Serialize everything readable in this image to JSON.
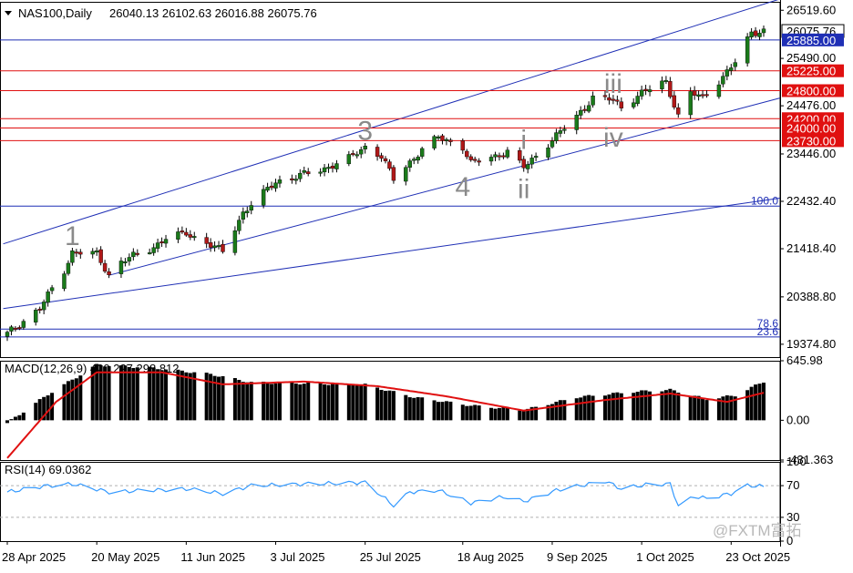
{
  "header": {
    "symbol": "NAS100,Daily",
    "ohlc": "26040.13 26102.63 26016.88 26075.76"
  },
  "colors": {
    "candle_up": "#1a7a1a",
    "candle_down": "#b01818",
    "channel": "#1f2fb5",
    "level_red": "#e01010",
    "level_blue": "#1f2fb5",
    "macd_signal": "#e01010",
    "rsi_line": "#3399ff",
    "wave_label": "#8a8a8a",
    "price_tag_text": "#ffffff"
  },
  "watermark": "@FXTM富拓",
  "chart_data": [
    {
      "type": "candlestick",
      "panel": "price",
      "y_ticks": [
        "26519.60",
        "25490.00",
        "24476.00",
        "23446.00",
        "22432.40",
        "21418.40",
        "20388.80",
        "19374.80"
      ],
      "ylim": [
        19100,
        26700
      ],
      "close_path": [
        {
          "date": "2025-04-28",
          "close": 19600
        },
        {
          "date": "2025-05-06",
          "close": 20150
        },
        {
          "date": "2025-05-12",
          "close": 20950
        },
        {
          "date": "2025-05-14",
          "close": 21350
        },
        {
          "date": "2025-05-20",
          "close": 21300
        },
        {
          "date": "2025-05-23",
          "close": 20850
        },
        {
          "date": "2025-05-26",
          "close": 21150
        },
        {
          "date": "2025-06-02",
          "close": 21400
        },
        {
          "date": "2025-06-06",
          "close": 21650
        },
        {
          "date": "2025-06-11",
          "close": 21750
        },
        {
          "date": "2025-06-17",
          "close": 21500
        },
        {
          "date": "2025-06-20",
          "close": 21350
        },
        {
          "date": "2025-06-25",
          "close": 22200
        },
        {
          "date": "2025-07-03",
          "close": 22850
        },
        {
          "date": "2025-07-14",
          "close": 23100
        },
        {
          "date": "2025-07-21",
          "close": 23350
        },
        {
          "date": "2025-07-25",
          "close": 23600
        },
        {
          "date": "2025-07-29",
          "close": 23400
        },
        {
          "date": "2025-08-01",
          "close": 22900
        },
        {
          "date": "2025-08-08",
          "close": 23550
        },
        {
          "date": "2025-08-12",
          "close": 23800
        },
        {
          "date": "2025-08-18",
          "close": 23600
        },
        {
          "date": "2025-08-20",
          "close": 23250
        },
        {
          "date": "2025-08-26",
          "close": 23400
        },
        {
          "date": "2025-08-29",
          "close": 23500
        },
        {
          "date": "2025-09-02",
          "close": 23150
        },
        {
          "date": "2025-09-09",
          "close": 23750
        },
        {
          "date": "2025-09-15",
          "close": 24250
        },
        {
          "date": "2025-09-19",
          "close": 24650
        },
        {
          "date": "2025-09-24",
          "close": 24600
        },
        {
          "date": "2025-09-26",
          "close": 24450
        },
        {
          "date": "2025-10-01",
          "close": 24750
        },
        {
          "date": "2025-10-07",
          "close": 25000
        },
        {
          "date": "2025-10-10",
          "close": 24250
        },
        {
          "date": "2025-10-13",
          "close": 24750
        },
        {
          "date": "2025-10-16",
          "close": 24650
        },
        {
          "date": "2025-10-21",
          "close": 25100
        },
        {
          "date": "2025-10-24",
          "close": 25400
        },
        {
          "date": "2025-10-28",
          "close": 26050
        },
        {
          "date": "2025-10-31",
          "close": 26075.76
        }
      ],
      "price_tags": [
        {
          "value": "26519.60",
          "label": "26519.60",
          "style": "axis"
        },
        {
          "value": "26075.76",
          "label": "26075.76",
          "style": "current"
        },
        {
          "value": "25885.00",
          "label": "25885.00",
          "style": "blue"
        },
        {
          "value": "25225.00",
          "label": "25225.00",
          "style": "red"
        },
        {
          "value": "24800.00",
          "label": "24800.00",
          "style": "red"
        },
        {
          "value": "24200.00",
          "label": "24200.00",
          "style": "red"
        },
        {
          "value": "24000.00",
          "label": "24000.00",
          "style": "red"
        },
        {
          "value": "23730.00",
          "label": "23730.00",
          "style": "red"
        }
      ],
      "horizontal_levels": [
        {
          "value": 25885,
          "color": "blue"
        },
        {
          "value": 25225,
          "color": "red"
        },
        {
          "value": 24800,
          "color": "red"
        },
        {
          "value": 24200,
          "color": "red"
        },
        {
          "value": 24000,
          "color": "red"
        },
        {
          "value": 23730,
          "color": "red"
        }
      ],
      "fibonacci": [
        {
          "label": "100.0",
          "value": 22330
        },
        {
          "label": "78.6",
          "value": 19700
        },
        {
          "label": "23.6",
          "value": 19530
        }
      ],
      "wave_labels": [
        {
          "label": "1",
          "date": "2025-05-14",
          "price": 21500
        },
        {
          "label": "3",
          "date": "2025-07-25",
          "price": 23750
        },
        {
          "label": "4",
          "date": "2025-08-18",
          "price": 22550
        },
        {
          "label": "i",
          "date": "2025-09-02",
          "price": 23550
        },
        {
          "label": "ii",
          "date": "2025-09-02",
          "price": 22500
        },
        {
          "label": "iii",
          "date": "2025-09-24",
          "price": 24750
        },
        {
          "label": "iv",
          "date": "2025-09-24",
          "price": 23600
        }
      ]
    },
    {
      "type": "bar",
      "panel": "macd",
      "title": "MACD(12,26,9) 420.227 298.812",
      "y_ticks": [
        "645.98",
        "0.00",
        "-431.363"
      ],
      "ylim": [
        -431.363,
        645.98
      ],
      "histogram_path": [
        {
          "date": "2025-04-28",
          "value": -30
        },
        {
          "date": "2025-05-08",
          "value": 280
        },
        {
          "date": "2025-05-20",
          "value": 600
        },
        {
          "date": "2025-06-02",
          "value": 570
        },
        {
          "date": "2025-06-17",
          "value": 500
        },
        {
          "date": "2025-06-27",
          "value": 410
        },
        {
          "date": "2025-07-10",
          "value": 400
        },
        {
          "date": "2025-07-25",
          "value": 385
        },
        {
          "date": "2025-08-06",
          "value": 250
        },
        {
          "date": "2025-08-20",
          "value": 160
        },
        {
          "date": "2025-09-02",
          "value": 110
        },
        {
          "date": "2025-09-15",
          "value": 250
        },
        {
          "date": "2025-09-29",
          "value": 310
        },
        {
          "date": "2025-10-08",
          "value": 330
        },
        {
          "date": "2025-10-17",
          "value": 230
        },
        {
          "date": "2025-10-24",
          "value": 270
        },
        {
          "date": "2025-10-31",
          "value": 420
        }
      ],
      "signal_path": [
        {
          "date": "2025-04-28",
          "value": -410
        },
        {
          "date": "2025-05-10",
          "value": 200
        },
        {
          "date": "2025-05-20",
          "value": 520
        },
        {
          "date": "2025-06-05",
          "value": 520
        },
        {
          "date": "2025-06-20",
          "value": 390
        },
        {
          "date": "2025-07-10",
          "value": 420
        },
        {
          "date": "2025-07-28",
          "value": 370
        },
        {
          "date": "2025-08-14",
          "value": 260
        },
        {
          "date": "2025-09-02",
          "value": 105
        },
        {
          "date": "2025-09-22",
          "value": 220
        },
        {
          "date": "2025-10-08",
          "value": 290
        },
        {
          "date": "2025-10-22",
          "value": 200
        },
        {
          "date": "2025-10-31",
          "value": 298.812
        }
      ]
    },
    {
      "type": "line",
      "panel": "rsi",
      "title": "RSI(14) 69.0362",
      "y_ticks": [
        "100",
        "70",
        "30",
        "0"
      ],
      "ylim": [
        0,
        100
      ],
      "levels": [
        70,
        30
      ],
      "series_path": [
        {
          "date": "2025-04-28",
          "value": 62
        },
        {
          "date": "2025-05-08",
          "value": 70
        },
        {
          "date": "2025-05-14",
          "value": 72
        },
        {
          "date": "2025-05-23",
          "value": 62
        },
        {
          "date": "2025-06-02",
          "value": 64
        },
        {
          "date": "2025-06-11",
          "value": 66
        },
        {
          "date": "2025-06-20",
          "value": 60
        },
        {
          "date": "2025-06-27",
          "value": 70
        },
        {
          "date": "2025-07-10",
          "value": 72
        },
        {
          "date": "2025-07-25",
          "value": 74
        },
        {
          "date": "2025-08-01",
          "value": 45
        },
        {
          "date": "2025-08-05",
          "value": 62
        },
        {
          "date": "2025-08-12",
          "value": 64
        },
        {
          "date": "2025-08-20",
          "value": 48
        },
        {
          "date": "2025-08-28",
          "value": 56
        },
        {
          "date": "2025-09-02",
          "value": 50
        },
        {
          "date": "2025-09-10",
          "value": 64
        },
        {
          "date": "2025-09-22",
          "value": 76
        },
        {
          "date": "2025-09-26",
          "value": 66
        },
        {
          "date": "2025-10-03",
          "value": 72
        },
        {
          "date": "2025-10-08",
          "value": 72
        },
        {
          "date": "2025-10-10",
          "value": 45
        },
        {
          "date": "2025-10-14",
          "value": 56
        },
        {
          "date": "2025-10-17",
          "value": 54
        },
        {
          "date": "2025-10-23",
          "value": 60
        },
        {
          "date": "2025-10-27",
          "value": 70
        },
        {
          "date": "2025-10-31",
          "value": 69.0362
        }
      ]
    },
    {
      "type": "axis",
      "panel": "time",
      "x_ticks": [
        "28 Apr 2025",
        "20 May 2025",
        "11 Jun 2025",
        "3 Jul 2025",
        "25 Jul 2025",
        "18 Aug 2025",
        "9 Sep 2025",
        "1 Oct 2025",
        "23 Oct 2025"
      ]
    }
  ]
}
